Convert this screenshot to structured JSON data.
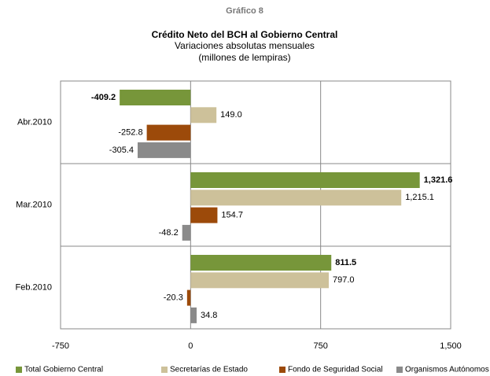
{
  "chart_data": {
    "type": "hbar",
    "supertitle": "Gráfico 8",
    "title": "Crédito Neto del BCH al Gobierno Central",
    "subtitle": [
      "Variaciones absolutas mensuales",
      "(millones de lempiras)"
    ],
    "categories": [
      "Abr.2010",
      "Mar.2010",
      "Feb.2010"
    ],
    "series": [
      {
        "name": "Total Gobierno Central",
        "color": "#77963a",
        "values": [
          -409.2,
          1321.6,
          811.5
        ],
        "value_labels": [
          "-409.2",
          "1,321.6",
          "811.5"
        ]
      },
      {
        "name": "Secretarías de Estado",
        "color": "#cdc19a",
        "values": [
          149.0,
          1215.1,
          797.0
        ],
        "value_labels": [
          "149.0",
          "1,215.1",
          "797.0"
        ]
      },
      {
        "name": "Fondo de Seguridad Social",
        "color": "#9c4a0a",
        "values": [
          -252.8,
          154.7,
          -20.3
        ],
        "value_labels": [
          "-252.8",
          "154.7",
          "-20.3"
        ]
      },
      {
        "name": "Organismos Autónomos",
        "color": "#8a8a8a",
        "values": [
          -305.4,
          -48.2,
          34.8
        ],
        "value_labels": [
          "-305.4",
          "-48.2",
          "34.8"
        ]
      }
    ],
    "xlim": [
      -750,
      1500
    ],
    "xticks": [
      -750,
      0,
      750,
      {
        "value": 1500,
        "label": "1,500"
      }
    ],
    "grid": true,
    "legend": "bottom"
  }
}
